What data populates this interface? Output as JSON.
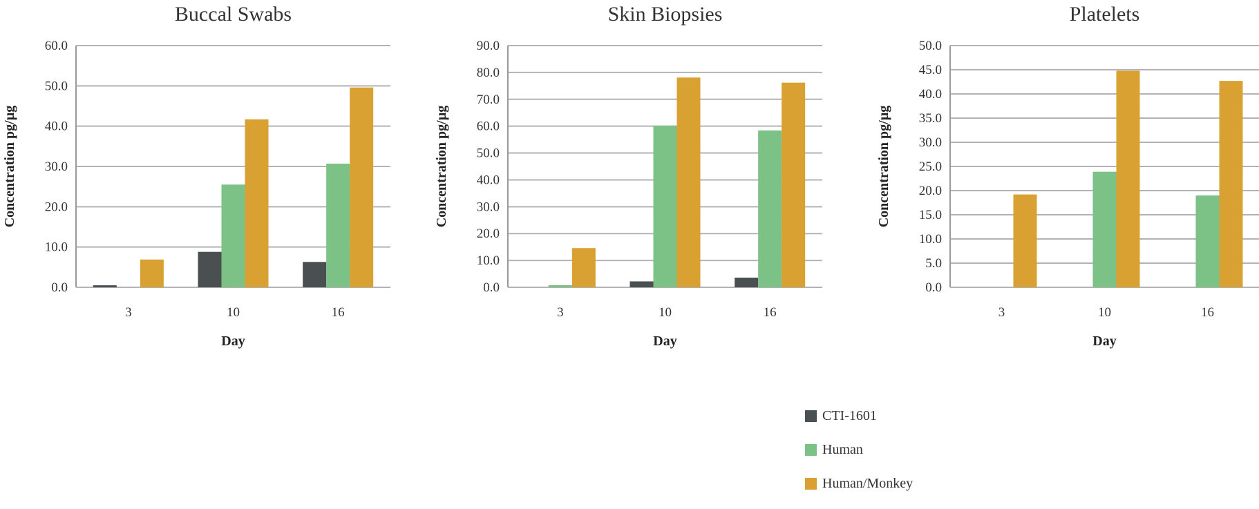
{
  "colors": {
    "grid": "#b3b3b3",
    "axis": "#9a9a9a"
  },
  "chart_data": [
    {
      "type": "bar",
      "title": "Buccal Swabs",
      "xlabel": "Day",
      "ylabel": "Concentration pg/µg",
      "categories": [
        "3",
        "10",
        "16"
      ],
      "ylim": [
        0,
        60
      ],
      "ytick_step": 10,
      "yticks": [
        "0.0",
        "10.0",
        "20.0",
        "30.0",
        "40.0",
        "50.0",
        "60.0"
      ],
      "grid": true,
      "series": [
        {
          "name": "CTI-1601",
          "color": "#4a4f52",
          "values": [
            0.5,
            8.8,
            6.3
          ]
        },
        {
          "name": "Human",
          "color": "#7cc185",
          "values": [
            0,
            25.5,
            30.7
          ]
        },
        {
          "name": "Human/Monkey",
          "color": "#d9a032",
          "values": [
            6.9,
            41.7,
            49.6
          ]
        }
      ]
    },
    {
      "type": "bar",
      "title": "Skin Biopsies",
      "xlabel": "Day",
      "ylabel": "Concentration pg/µg",
      "categories": [
        "3",
        "10",
        "16"
      ],
      "ylim": [
        0,
        90
      ],
      "ytick_step": 10,
      "yticks": [
        "0.0",
        "10.0",
        "20.0",
        "30.0",
        "40.0",
        "50.0",
        "60.0",
        "70.0",
        "80.0",
        "90.0"
      ],
      "grid": true,
      "series": [
        {
          "name": "CTI-1601",
          "color": "#4a4f52",
          "values": [
            0,
            2.2,
            3.6
          ]
        },
        {
          "name": "Human",
          "color": "#7cc185",
          "values": [
            0.8,
            60.1,
            58.4
          ]
        },
        {
          "name": "Human/Monkey",
          "color": "#d9a032",
          "values": [
            14.6,
            78.1,
            76.2
          ]
        }
      ]
    },
    {
      "type": "bar",
      "title": "Platelets",
      "xlabel": "Day",
      "ylabel": "Concentration pg/µg",
      "categories": [
        "3",
        "10",
        "16"
      ],
      "ylim": [
        0,
        50
      ],
      "ytick_step": 5,
      "yticks": [
        "0.0",
        "5.0",
        "10.0",
        "15.0",
        "20.0",
        "25.0",
        "30.0",
        "35.0",
        "40.0",
        "45.0",
        "50.0"
      ],
      "grid": true,
      "series": [
        {
          "name": "CTI-1601",
          "color": "#4a4f52",
          "values": [
            0,
            0,
            0
          ]
        },
        {
          "name": "Human",
          "color": "#7cc185",
          "values": [
            0,
            23.9,
            19.0
          ]
        },
        {
          "name": "Human/Monkey",
          "color": "#d9a032",
          "values": [
            19.2,
            44.8,
            42.7
          ]
        }
      ]
    }
  ],
  "legend": {
    "placement": "bottom-right",
    "items": [
      {
        "label": "CTI-1601",
        "color": "#4a4f52"
      },
      {
        "label": "Human",
        "color": "#7cc185"
      },
      {
        "label": "Human/Monkey",
        "color": "#d9a032"
      }
    ]
  }
}
